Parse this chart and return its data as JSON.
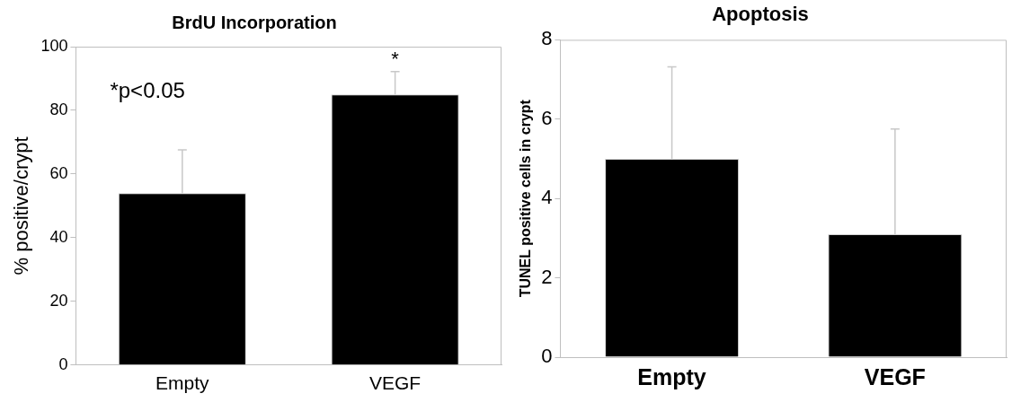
{
  "chart_data": [
    {
      "type": "bar",
      "title": "BrdU Incorporation",
      "ylabel": "% positive/crypt",
      "categories": [
        "Empty",
        "VEGF"
      ],
      "values": [
        54,
        85
      ],
      "color": "#000000",
      "errors": [
        [
          54,
          67.6
        ],
        [
          85,
          92.2
        ]
      ],
      "ylim": [
        0,
        100
      ],
      "yticks": [
        0,
        20,
        40,
        60,
        80,
        100
      ],
      "grid": false,
      "annotations": [
        "*p<0.05",
        {
          "text": "*",
          "x": "VEGF",
          "y": 92.2
        }
      ]
    },
    {
      "type": "bar",
      "title": "Apoptosis",
      "ylabel": "TUNEL positive cells in crypt",
      "categories": [
        "Empty",
        "VEGF"
      ],
      "values": [
        5.0,
        3.1
      ],
      "color": "#000000",
      "errors": [
        [
          5.0,
          7.32
        ],
        [
          3.1,
          5.75
        ]
      ],
      "ylim": [
        0,
        8
      ],
      "yticks": [
        0,
        2,
        4,
        6,
        8
      ],
      "grid": false
    }
  ]
}
